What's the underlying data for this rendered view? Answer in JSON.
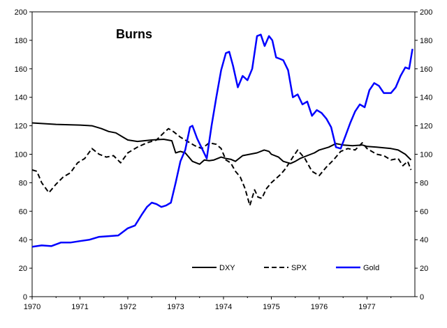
{
  "chart_data": {
    "type": "line",
    "title": "Burns",
    "xlabel": "",
    "ylabel": "",
    "xlim": [
      1970,
      1978
    ],
    "ylim": [
      0,
      200
    ],
    "x_ticks": [
      "1970",
      "1971",
      "1972",
      "1973",
      "1974",
      "1975",
      "1976",
      "1977"
    ],
    "y_ticks": [
      "0",
      "20",
      "40",
      "60",
      "80",
      "100",
      "120",
      "140",
      "160",
      "180",
      "200"
    ],
    "right_y_ticks": [
      "0",
      "20",
      "40",
      "60",
      "80",
      "100",
      "120",
      "140",
      "160",
      "180",
      "200"
    ],
    "grid": false,
    "legend_position": "bottom-right",
    "series": [
      {
        "name": "DXY",
        "color": "#000000",
        "dash": "solid",
        "x": [
          1970.0,
          1970.5,
          1971.0,
          1971.25,
          1971.45,
          1971.6,
          1971.75,
          1971.9,
          1972.0,
          1972.2,
          1972.5,
          1972.75,
          1972.92,
          1973.0,
          1973.1,
          1973.2,
          1973.35,
          1973.5,
          1973.6,
          1973.7,
          1973.8,
          1973.95,
          1974.05,
          1974.15,
          1974.25,
          1974.4,
          1974.55,
          1974.7,
          1974.85,
          1974.95,
          1975.0,
          1975.15,
          1975.25,
          1975.4,
          1975.5,
          1975.6,
          1975.75,
          1975.9,
          1976.0,
          1976.2,
          1976.35,
          1976.5,
          1976.7,
          1976.9,
          1977.0,
          1977.2,
          1977.35,
          1977.5,
          1977.65,
          1977.8,
          1977.92
        ],
        "values": [
          122.0,
          121.0,
          120.5,
          120.0,
          118.0,
          116.0,
          115.0,
          112.0,
          110.0,
          109.0,
          110.0,
          110.5,
          109.5,
          101.0,
          102.0,
          101.0,
          95.0,
          93.0,
          96.0,
          95.5,
          96.0,
          98.0,
          97.0,
          96.5,
          95.0,
          99.0,
          100.0,
          101.0,
          103.0,
          102.0,
          100.0,
          98.0,
          95.0,
          93.5,
          95.0,
          97.0,
          99.0,
          101.0,
          103.0,
          105.0,
          107.5,
          106.5,
          106.0,
          106.5,
          105.5,
          105.0,
          104.5,
          104.0,
          103.0,
          100.0,
          96.0
        ]
      },
      {
        "name": "SPX",
        "color": "#000000",
        "dash": "dashed",
        "x": [
          1970.0,
          1970.1,
          1970.2,
          1970.35,
          1970.5,
          1970.65,
          1970.8,
          1970.95,
          1971.1,
          1971.25,
          1971.4,
          1971.55,
          1971.7,
          1971.85,
          1972.0,
          1972.2,
          1972.4,
          1972.6,
          1972.75,
          1972.85,
          1972.95,
          1973.1,
          1973.25,
          1973.4,
          1973.55,
          1973.7,
          1973.85,
          1973.95,
          1974.05,
          1974.15,
          1974.25,
          1974.35,
          1974.45,
          1974.55,
          1974.65,
          1974.72,
          1974.8,
          1974.9,
          1975.0,
          1975.1,
          1975.2,
          1975.3,
          1975.45,
          1975.55,
          1975.7,
          1975.85,
          1976.0,
          1976.15,
          1976.3,
          1976.45,
          1976.6,
          1976.75,
          1976.9,
          1977.0,
          1977.2,
          1977.35,
          1977.5,
          1977.65,
          1977.75,
          1977.85,
          1977.92
        ],
        "values": [
          89.0,
          88.0,
          80.0,
          73.0,
          79.0,
          84.0,
          87.0,
          94.0,
          97.0,
          104.0,
          100.0,
          98.0,
          99.0,
          94.0,
          101.0,
          105.0,
          108.0,
          110.0,
          115.0,
          118.0,
          116.0,
          112.0,
          109.0,
          106.0,
          104.0,
          108.0,
          107.0,
          104.0,
          96.0,
          94.0,
          88.0,
          84.0,
          76.0,
          64.0,
          75.0,
          70.0,
          69.0,
          76.0,
          80.0,
          83.0,
          86.0,
          90.0,
          98.0,
          103.0,
          97.0,
          88.0,
          85.0,
          91.0,
          96.0,
          102.0,
          104.0,
          103.0,
          108.0,
          104.0,
          100.0,
          99.0,
          96.0,
          97.0,
          92.0,
          95.0,
          89.0
        ]
      },
      {
        "name": "Gold",
        "color": "#0000ff",
        "dash": "solid",
        "x": [
          1970.0,
          1970.2,
          1970.4,
          1970.6,
          1970.8,
          1971.0,
          1971.2,
          1971.4,
          1971.6,
          1971.8,
          1972.0,
          1972.15,
          1972.3,
          1972.4,
          1972.5,
          1972.6,
          1972.7,
          1972.8,
          1972.9,
          1973.0,
          1973.1,
          1973.2,
          1973.3,
          1973.35,
          1973.45,
          1973.55,
          1973.65,
          1973.75,
          1973.85,
          1973.95,
          1974.05,
          1974.12,
          1974.2,
          1974.3,
          1974.4,
          1974.5,
          1974.6,
          1974.7,
          1974.78,
          1974.86,
          1974.95,
          1975.02,
          1975.1,
          1975.18,
          1975.25,
          1975.35,
          1975.45,
          1975.55,
          1975.65,
          1975.75,
          1975.85,
          1975.95,
          1976.05,
          1976.15,
          1976.25,
          1976.35,
          1976.45,
          1976.55,
          1976.65,
          1976.75,
          1976.85,
          1976.95,
          1977.05,
          1977.15,
          1977.25,
          1977.35,
          1977.5,
          1977.6,
          1977.7,
          1977.8,
          1977.88,
          1977.95
        ],
        "values": [
          35.0,
          36.0,
          35.5,
          38.0,
          38.0,
          39.0,
          40.0,
          42.0,
          42.5,
          43.0,
          48.0,
          50.0,
          58.0,
          63.0,
          66.0,
          65.0,
          63.0,
          64.0,
          66.0,
          80.0,
          95.0,
          103.0,
          119.0,
          120.0,
          111.0,
          104.0,
          97.0,
          120.0,
          140.0,
          159.0,
          171.0,
          172.0,
          162.0,
          147.0,
          155.0,
          152.0,
          160.0,
          183.0,
          184.0,
          176.0,
          183.0,
          180.0,
          168.0,
          167.0,
          166.0,
          159.0,
          140.0,
          142.0,
          135.0,
          137.0,
          127.0,
          131.0,
          129.0,
          125.0,
          119.0,
          105.0,
          104.0,
          113.0,
          122.0,
          130.0,
          135.0,
          133.0,
          145.0,
          150.0,
          148.0,
          143.0,
          143.0,
          147.0,
          155.0,
          161.0,
          160.0,
          174.0
        ]
      }
    ]
  }
}
